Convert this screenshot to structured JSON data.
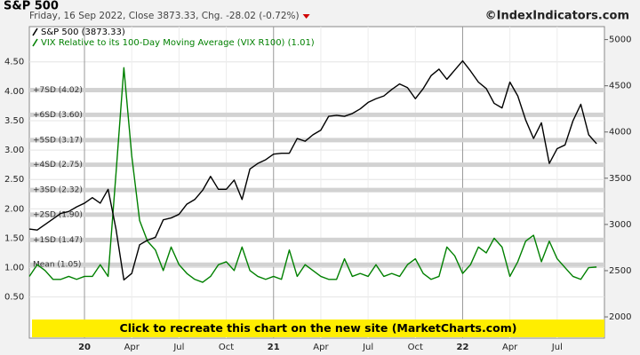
{
  "chart_data": {
    "type": "line",
    "title": "S&P 500",
    "subtitle": "Friday, 16 Sep 2022, Close 3873.33, Chg. -28.02 (-0.72%)",
    "source": "©IndexIndicators.com",
    "banner": "Click to recreate this chart on the new site (MarketCharts.com)",
    "xlim": [
      0,
      73
    ],
    "xticks": [
      {
        "value": 7,
        "label": "20"
      },
      {
        "value": 13,
        "label": "Apr"
      },
      {
        "value": 19,
        "label": "Jul"
      },
      {
        "value": 25,
        "label": "Oct"
      },
      {
        "value": 31,
        "label": "21"
      },
      {
        "value": 37,
        "label": "Apr"
      },
      {
        "value": 43,
        "label": "Jul"
      },
      {
        "value": 49,
        "label": "Oct"
      },
      {
        "value": 55,
        "label": "22"
      },
      {
        "value": 61,
        "label": "Apr"
      },
      {
        "value": 67,
        "label": "Jul"
      }
    ],
    "ylim": [
      -0.2,
      5.1
    ],
    "yticks": [
      {
        "value": 0.5,
        "label": "0.50"
      },
      {
        "value": 1,
        "label": "1.00"
      },
      {
        "value": 1.5,
        "label": "1.50"
      },
      {
        "value": 2,
        "label": "2.00"
      },
      {
        "value": 2.5,
        "label": "2.50"
      },
      {
        "value": 3,
        "label": "3.00"
      },
      {
        "value": 3.5,
        "label": "3.50"
      },
      {
        "value": 4,
        "label": "4.00"
      },
      {
        "value": 4.5,
        "label": "4.50"
      }
    ],
    "y2lim": [
      1770,
      5140
    ],
    "y2ticks": [
      2000,
      2500,
      3000,
      3500,
      4000,
      4500,
      5000
    ],
    "grid": true,
    "reference_lines": [
      {
        "label": "+7SD (4.02)",
        "value": 4.02
      },
      {
        "label": "+6SD (3.60)",
        "value": 3.6
      },
      {
        "label": "+5SD (3.17)",
        "value": 3.17
      },
      {
        "label": "+4SD (2.75)",
        "value": 2.75
      },
      {
        "label": "+3SD (2.32)",
        "value": 2.32
      },
      {
        "label": "+2SD (1.90)",
        "value": 1.9
      },
      {
        "label": "+1SD (1.47)",
        "value": 1.47
      },
      {
        "label": "Mean (1.05)",
        "value": 1.05
      }
    ],
    "series": [
      {
        "name": "S&P 500 (3873.33)",
        "color": "#000000",
        "axis": "y2",
        "values": [
          2950,
          2940,
          3000,
          3060,
          3120,
          3140,
          3190,
          3230,
          3290,
          3230,
          3380,
          2950,
          2400,
          2470,
          2780,
          2830,
          2860,
          3050,
          3070,
          3110,
          3220,
          3270,
          3370,
          3520,
          3380,
          3380,
          3480,
          3270,
          3600,
          3660,
          3700,
          3760,
          3770,
          3770,
          3930,
          3900,
          3970,
          4020,
          4170,
          4180,
          4170,
          4200,
          4250,
          4320,
          4360,
          4390,
          4460,
          4520,
          4480,
          4360,
          4470,
          4610,
          4680,
          4570,
          4670,
          4770,
          4660,
          4540,
          4470,
          4310,
          4260,
          4540,
          4390,
          4130,
          3930,
          4100,
          3660,
          3820,
          3860,
          4120,
          4300,
          3970,
          3873
        ]
      },
      {
        "name": "VIX Relative to its 100-Day Moving Average (VIX R100) (1.01)",
        "color": "#008000",
        "values": [
          0.85,
          1.05,
          0.95,
          0.8,
          0.8,
          0.85,
          0.8,
          0.85,
          0.85,
          1.05,
          0.85,
          2.6,
          4.4,
          2.9,
          1.8,
          1.45,
          1.3,
          0.95,
          1.35,
          1.05,
          0.9,
          0.8,
          0.75,
          0.85,
          1.05,
          1.1,
          0.95,
          1.35,
          0.95,
          0.85,
          0.8,
          0.85,
          0.8,
          1.3,
          0.85,
          1.05,
          0.95,
          0.85,
          0.8,
          0.8,
          1.15,
          0.85,
          0.9,
          0.85,
          1.05,
          0.85,
          0.9,
          0.85,
          1.05,
          1.15,
          0.9,
          0.8,
          0.85,
          1.35,
          1.2,
          0.9,
          1.05,
          1.35,
          1.25,
          1.5,
          1.35,
          0.85,
          1.1,
          1.45,
          1.55,
          1.1,
          1.45,
          1.15,
          1.0,
          0.85,
          0.8,
          1.0,
          1.01
        ]
      }
    ]
  }
}
